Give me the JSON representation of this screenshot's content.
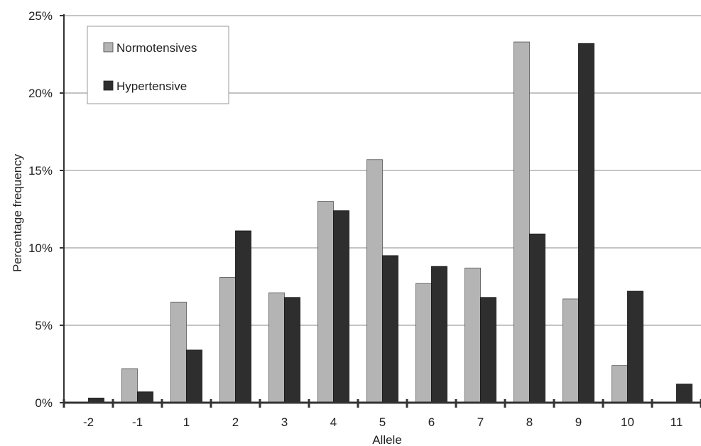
{
  "chart_data": {
    "type": "bar",
    "title": "",
    "xlabel": "Allele",
    "ylabel": "Percentage frequency",
    "categories": [
      "-2",
      "-1",
      "1",
      "2",
      "3",
      "4",
      "5",
      "6",
      "7",
      "8",
      "9",
      "10",
      "11"
    ],
    "ylim": [
      0,
      25
    ],
    "yticks": [
      0,
      5,
      10,
      15,
      20,
      25
    ],
    "ytick_labels": [
      "0%",
      "5%",
      "10%",
      "15%",
      "20%",
      "25%"
    ],
    "grid": true,
    "legend_position": "top-left",
    "series": [
      {
        "name": "Normotensives",
        "color": "#b4b4b4",
        "values": [
          0,
          2.2,
          6.5,
          8.1,
          7.1,
          13.0,
          15.7,
          7.7,
          8.7,
          23.3,
          6.7,
          2.4,
          0
        ]
      },
      {
        "name": "Hypertensive",
        "color": "#2e2e2e",
        "values": [
          0.3,
          0.7,
          3.4,
          11.1,
          6.8,
          12.4,
          9.5,
          8.8,
          6.8,
          10.9,
          23.2,
          7.2,
          1.2
        ]
      }
    ]
  }
}
